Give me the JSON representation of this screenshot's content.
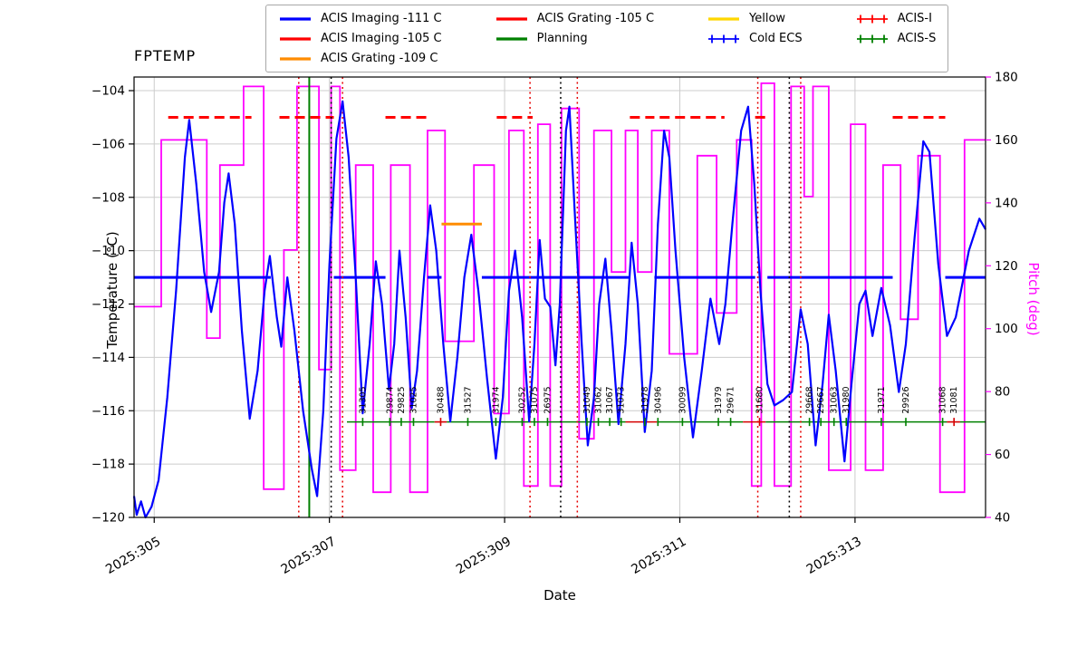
{
  "title": "FPTEMP",
  "axes": {
    "xlabel": "Date",
    "ylabel_left": "Temperature (°C)",
    "ylabel_right": "Pitch (deg)"
  },
  "legend": {
    "columns": [
      [
        {
          "label": "ACIS Imaging -111 C",
          "color": "#0000ff",
          "marker": "line"
        },
        {
          "label": "ACIS Imaging -105 C",
          "color": "#ff0000",
          "marker": "line"
        },
        {
          "label": "ACIS Grating -109 C",
          "color": "#ff8c00",
          "marker": "line"
        }
      ],
      [
        {
          "label": "ACIS Grating -105 C",
          "color": "#ff0000",
          "marker": "line"
        },
        {
          "label": "Planning",
          "color": "#008000",
          "marker": "line"
        }
      ],
      [
        {
          "label": "Yellow",
          "color": "#ffd700",
          "marker": "line"
        },
        {
          "label": "Cold ECS",
          "color": "#0000ff",
          "marker": "plus"
        }
      ],
      [
        {
          "label": "ACIS-I",
          "color": "#ff0000",
          "marker": "plus"
        },
        {
          "label": "ACIS-S",
          "color": "#008000",
          "marker": "plus"
        }
      ]
    ]
  },
  "chart_data": {
    "type": "line",
    "title": "FPTEMP",
    "xlabel": "Date",
    "ylabel": "Temperature (°C)",
    "ylabel2": "Pitch (deg)",
    "x_range": [
      304.77,
      314.49
    ],
    "x_ticks": [
      {
        "value": 305,
        "label": "2025:305"
      },
      {
        "value": 307,
        "label": "2025:307"
      },
      {
        "value": 309,
        "label": "2025:309"
      },
      {
        "value": 311,
        "label": "2025:311"
      },
      {
        "value": 313,
        "label": "2025:313"
      }
    ],
    "temp_axis": {
      "min": -120,
      "max": -103.49,
      "ticks": [
        -104,
        -106,
        -108,
        -110,
        -112,
        -114,
        -116,
        -118,
        -120
      ]
    },
    "pitch_axis": {
      "min": 40,
      "max": 180,
      "ticks": [
        40,
        60,
        80,
        100,
        120,
        140,
        160,
        180
      ]
    },
    "fptemp_series": {
      "name": "FPTEMP",
      "color": "#0000ff",
      "points": [
        [
          304.77,
          -119.2
        ],
        [
          304.8,
          -119.9
        ],
        [
          304.85,
          -119.4
        ],
        [
          304.9,
          -120
        ],
        [
          304.97,
          -119.6
        ],
        [
          305.05,
          -118.6
        ],
        [
          305.15,
          -115.5
        ],
        [
          305.25,
          -111.5
        ],
        [
          305.35,
          -106.5
        ],
        [
          305.4,
          -105.1
        ],
        [
          305.48,
          -107.5
        ],
        [
          305.57,
          -110.8
        ],
        [
          305.65,
          -112.3
        ],
        [
          305.74,
          -110.8
        ],
        [
          305.8,
          -108.2
        ],
        [
          305.85,
          -107.1
        ],
        [
          305.92,
          -109
        ],
        [
          306,
          -113
        ],
        [
          306.09,
          -116.3
        ],
        [
          306.18,
          -114.5
        ],
        [
          306.26,
          -111.5
        ],
        [
          306.32,
          -110.2
        ],
        [
          306.4,
          -112.5
        ],
        [
          306.45,
          -113.6
        ],
        [
          306.52,
          -111
        ],
        [
          306.6,
          -113
        ],
        [
          306.7,
          -116
        ],
        [
          306.8,
          -118.2
        ],
        [
          306.86,
          -119.2
        ],
        [
          306.93,
          -116
        ],
        [
          307,
          -110.5
        ],
        [
          307.08,
          -105.8
        ],
        [
          307.15,
          -104.4
        ],
        [
          307.22,
          -106.5
        ],
        [
          307.3,
          -111
        ],
        [
          307.38,
          -116.1
        ],
        [
          307.46,
          -113.5
        ],
        [
          307.53,
          -110.4
        ],
        [
          307.6,
          -112
        ],
        [
          307.68,
          -115.2
        ],
        [
          307.74,
          -113.5
        ],
        [
          307.8,
          -110
        ],
        [
          307.87,
          -112.5
        ],
        [
          307.94,
          -115.9
        ],
        [
          308,
          -114.5
        ],
        [
          308.08,
          -111
        ],
        [
          308.15,
          -108.3
        ],
        [
          308.22,
          -110
        ],
        [
          308.3,
          -113.5
        ],
        [
          308.38,
          -116.4
        ],
        [
          308.46,
          -114
        ],
        [
          308.54,
          -111
        ],
        [
          308.62,
          -109.4
        ],
        [
          308.7,
          -111.5
        ],
        [
          308.8,
          -114.8
        ],
        [
          308.9,
          -117.8
        ],
        [
          308.98,
          -115.5
        ],
        [
          309.05,
          -111.5
        ],
        [
          309.12,
          -110
        ],
        [
          309.2,
          -112.5
        ],
        [
          309.28,
          -116.4
        ],
        [
          309.34,
          -113.5
        ],
        [
          309.4,
          -109.6
        ],
        [
          309.46,
          -111.8
        ],
        [
          309.52,
          -112.1
        ],
        [
          309.58,
          -114.3
        ],
        [
          309.63,
          -112
        ],
        [
          309.7,
          -105.5
        ],
        [
          309.74,
          -104.6
        ],
        [
          309.8,
          -108.5
        ],
        [
          309.88,
          -113.5
        ],
        [
          309.95,
          -117.3
        ],
        [
          310.02,
          -115.5
        ],
        [
          310.08,
          -112
        ],
        [
          310.15,
          -110.3
        ],
        [
          310.22,
          -113
        ],
        [
          310.3,
          -116.5
        ],
        [
          310.38,
          -113.5
        ],
        [
          310.45,
          -109.7
        ],
        [
          310.52,
          -112
        ],
        [
          310.6,
          -116.8
        ],
        [
          310.68,
          -114.5
        ],
        [
          310.75,
          -109
        ],
        [
          310.82,
          -105.5
        ],
        [
          310.88,
          -106.5
        ],
        [
          310.95,
          -110
        ],
        [
          311.05,
          -114
        ],
        [
          311.15,
          -117
        ],
        [
          311.25,
          -114.5
        ],
        [
          311.35,
          -111.8
        ],
        [
          311.45,
          -113.5
        ],
        [
          311.52,
          -112
        ],
        [
          311.6,
          -109
        ],
        [
          311.7,
          -105.5
        ],
        [
          311.78,
          -104.6
        ],
        [
          311.85,
          -107.5
        ],
        [
          311.92,
          -111.5
        ],
        [
          312,
          -115
        ],
        [
          312.08,
          -115.8
        ],
        [
          312.18,
          -115.6
        ],
        [
          312.28,
          -115.3
        ],
        [
          312.38,
          -112.2
        ],
        [
          312.46,
          -113.5
        ],
        [
          312.55,
          -117.3
        ],
        [
          312.63,
          -115
        ],
        [
          312.7,
          -112.4
        ],
        [
          312.78,
          -114.5
        ],
        [
          312.88,
          -117.9
        ],
        [
          312.96,
          -115
        ],
        [
          313.05,
          -112
        ],
        [
          313.12,
          -111.5
        ],
        [
          313.2,
          -113.2
        ],
        [
          313.3,
          -111.4
        ],
        [
          313.4,
          -112.8
        ],
        [
          313.5,
          -115.3
        ],
        [
          313.58,
          -113.5
        ],
        [
          313.68,
          -109.5
        ],
        [
          313.78,
          -105.9
        ],
        [
          313.85,
          -106.3
        ],
        [
          313.95,
          -110.5
        ],
        [
          314.05,
          -113.2
        ],
        [
          314.15,
          -112.5
        ],
        [
          314.3,
          -110
        ],
        [
          314.42,
          -108.8
        ],
        [
          314.49,
          -109.2
        ]
      ]
    },
    "pitch_series": {
      "name": "Pitch",
      "color": "#ff00ff",
      "steps": [
        [
          304.77,
          107
        ],
        [
          305.08,
          160
        ],
        [
          305.6,
          97
        ],
        [
          305.75,
          152
        ],
        [
          306.02,
          177
        ],
        [
          306.25,
          49
        ],
        [
          306.48,
          125
        ],
        [
          306.63,
          177
        ],
        [
          306.88,
          87
        ],
        [
          307.02,
          177
        ],
        [
          307.12,
          55
        ],
        [
          307.3,
          152
        ],
        [
          307.5,
          48
        ],
        [
          307.7,
          152
        ],
        [
          307.92,
          48
        ],
        [
          308.12,
          163
        ],
        [
          308.32,
          96
        ],
        [
          308.65,
          152
        ],
        [
          308.88,
          73
        ],
        [
          309.05,
          163
        ],
        [
          309.22,
          50
        ],
        [
          309.38,
          165
        ],
        [
          309.52,
          50
        ],
        [
          309.65,
          170
        ],
        [
          309.85,
          65
        ],
        [
          310.02,
          163
        ],
        [
          310.22,
          118
        ],
        [
          310.38,
          163
        ],
        [
          310.52,
          118
        ],
        [
          310.68,
          163
        ],
        [
          310.88,
          92
        ],
        [
          311.2,
          155
        ],
        [
          311.42,
          105
        ],
        [
          311.65,
          160
        ],
        [
          311.82,
          50
        ],
        [
          311.93,
          178
        ],
        [
          312.08,
          50
        ],
        [
          312.27,
          177
        ],
        [
          312.42,
          142
        ],
        [
          312.52,
          177
        ],
        [
          312.7,
          55
        ],
        [
          312.95,
          165
        ],
        [
          313.12,
          55
        ],
        [
          313.32,
          152
        ],
        [
          313.52,
          103
        ],
        [
          313.72,
          155
        ],
        [
          313.97,
          48
        ],
        [
          314.25,
          160
        ]
      ]
    },
    "limits": [
      {
        "name": "ACIS Imaging -111 C",
        "y": -111,
        "color": "#0000ff",
        "style": "solid",
        "segments": [
          [
            304.77,
            306.33
          ],
          [
            307.05,
            307.64
          ],
          [
            308.12,
            308.28
          ],
          [
            308.74,
            310.43
          ],
          [
            310.71,
            311.86
          ],
          [
            312.0,
            313.43
          ],
          [
            314.03,
            314.49
          ]
        ]
      },
      {
        "name": "ACIS Imaging / Grating -105 C",
        "y": -105,
        "color": "#ff0000",
        "style": "dashed",
        "segments": [
          [
            305.16,
            306.11
          ],
          [
            306.43,
            307.05
          ],
          [
            307.64,
            308.12
          ],
          [
            308.91,
            309.32
          ],
          [
            310.43,
            310.71
          ],
          [
            310.77,
            311.51
          ],
          [
            311.86,
            312.0
          ],
          [
            313.43,
            314.03
          ]
        ]
      },
      {
        "name": "ACIS Grating -109 C",
        "y": -109,
        "color": "#ff8c00",
        "style": "solid",
        "segments": [
          [
            308.28,
            308.74
          ]
        ]
      }
    ],
    "instrument_line": {
      "y": -116.42,
      "acis_s_color": "#008000",
      "acis_i_color": "#d40000",
      "segments": [
        {
          "type": "S",
          "range": [
            307.2,
            308.2
          ]
        },
        {
          "type": "I",
          "range": [
            308.2,
            308.34
          ]
        },
        {
          "type": "S",
          "range": [
            308.34,
            310.38
          ]
        },
        {
          "type": "I",
          "range": [
            310.38,
            310.74
          ]
        },
        {
          "type": "S",
          "range": [
            310.74,
            311.72
          ]
        },
        {
          "type": "I",
          "range": [
            311.72,
            311.98
          ]
        },
        {
          "type": "S",
          "range": [
            311.98,
            314.05
          ]
        },
        {
          "type": "I",
          "range": [
            314.05,
            314.2
          ]
        },
        {
          "type": "S",
          "range": [
            314.2,
            314.49
          ]
        }
      ]
    },
    "obsid_labels": [
      {
        "x": 307.38,
        "label": "31305",
        "color": "g"
      },
      {
        "x": 307.69,
        "label": "29874",
        "color": "g"
      },
      {
        "x": 307.82,
        "label": "29825",
        "color": "g"
      },
      {
        "x": 307.96,
        "label": "31025",
        "color": "g"
      },
      {
        "x": 308.27,
        "label": "30488",
        "color": "r"
      },
      {
        "x": 308.58,
        "label": "31527",
        "color": "g"
      },
      {
        "x": 308.9,
        "label": "31974",
        "color": "g"
      },
      {
        "x": 309.2,
        "label": "30252",
        "color": "g"
      },
      {
        "x": 309.34,
        "label": "31075",
        "color": "g"
      },
      {
        "x": 309.49,
        "label": "26975",
        "color": "g"
      },
      {
        "x": 309.94,
        "label": "31049",
        "color": "g"
      },
      {
        "x": 310.07,
        "label": "31062",
        "color": "g"
      },
      {
        "x": 310.2,
        "label": "31067",
        "color": "g"
      },
      {
        "x": 310.33,
        "label": "31073",
        "color": "g"
      },
      {
        "x": 310.6,
        "label": "31978",
        "color": "g"
      },
      {
        "x": 310.75,
        "label": "30496",
        "color": "g"
      },
      {
        "x": 311.03,
        "label": "30099",
        "color": "g"
      },
      {
        "x": 311.44,
        "label": "31979",
        "color": "g"
      },
      {
        "x": 311.58,
        "label": "29671",
        "color": "g"
      },
      {
        "x": 311.91,
        "label": "31680",
        "color": "r"
      },
      {
        "x": 312.48,
        "label": "29668",
        "color": "g"
      },
      {
        "x": 312.61,
        "label": "29667",
        "color": "g"
      },
      {
        "x": 312.76,
        "label": "31063",
        "color": "g"
      },
      {
        "x": 312.9,
        "label": "31980",
        "color": "g"
      },
      {
        "x": 313.3,
        "label": "31971",
        "color": "g"
      },
      {
        "x": 313.58,
        "label": "29926",
        "color": "g"
      },
      {
        "x": 314.0,
        "label": "31068",
        "color": "g"
      },
      {
        "x": 314.13,
        "label": "31081",
        "color": "r"
      }
    ],
    "vlines": {
      "red_dotted": [
        306.65,
        307.15,
        309.29,
        309.83,
        311.89,
        312.38
      ],
      "black_dotted": [
        307.02,
        309.64,
        312.25
      ],
      "green_solid": [
        306.77
      ]
    },
    "grid": true,
    "legend_position": "top-center"
  }
}
